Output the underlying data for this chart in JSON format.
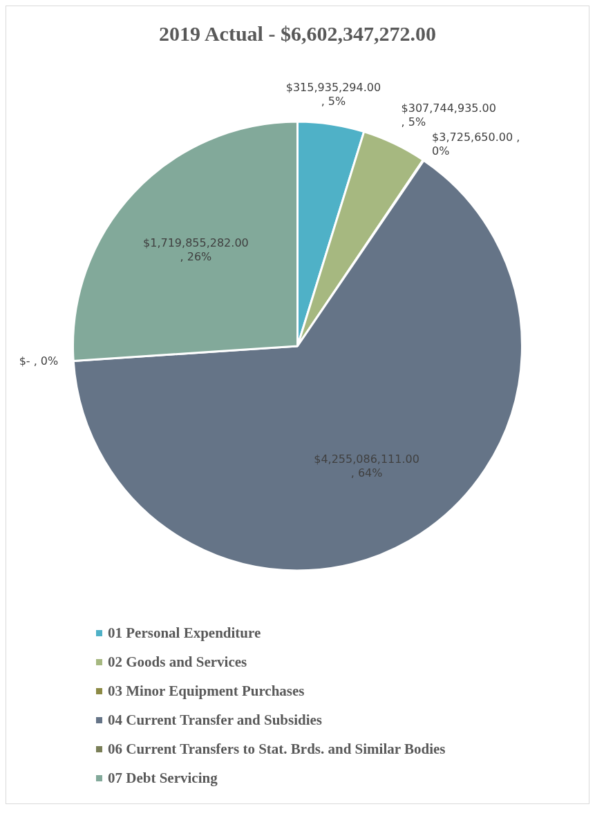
{
  "chart_data": {
    "type": "pie",
    "title": "2019 Actual - $6,602,347,272.00",
    "categories": [
      "01 Personal Expenditure",
      "02 Goods and Services",
      "03 Minor Equipment Purchases",
      "04 Current Transfer and Subsidies",
      "06 Current Transfers to Stat. Brds. and Similar Bodies",
      "07 Debt Servicing"
    ],
    "values": [
      315935294,
      307744935,
      3725650,
      4255086111,
      0,
      1719855282
    ],
    "colors": [
      "#4fb1c7",
      "#a6b880",
      "#8c8a45",
      "#657487",
      "#7a7f58",
      "#82a99a"
    ],
    "value_labels": [
      "$315,935,294.00 , 5%",
      "$307,744,935.00 , 5%",
      "$3,725,650.00 , 0%",
      "$4,255,086,111.00 , 64%",
      "$- , 0%",
      "$1,719,855,282.00 , 26%"
    ],
    "legend": "bottom"
  }
}
